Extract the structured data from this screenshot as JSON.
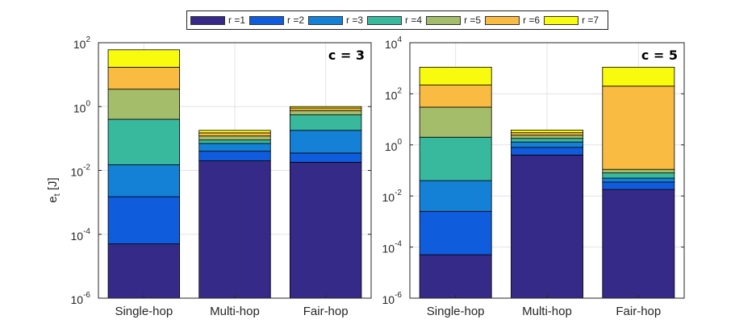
{
  "legend": {
    "placement": "top-center",
    "entries": [
      {
        "label": "r =1",
        "color": "#352A87"
      },
      {
        "label": "r =2",
        "color": "#0F5CDD"
      },
      {
        "label": "r =3",
        "color": "#1481D6"
      },
      {
        "label": "r =4",
        "color": "#38B99E"
      },
      {
        "label": "r =5",
        "color": "#A3BD6A"
      },
      {
        "label": "r =6",
        "color": "#F9BB41"
      },
      {
        "label": "r =7",
        "color": "#F9FB0E"
      }
    ]
  },
  "chart_data": [
    {
      "type": "bar",
      "stacked": true,
      "yscale": "log",
      "annotation": "c = 3",
      "ylabel": "e",
      "ylabel_sub": "t",
      "ylabel_unit": " [J]",
      "categories": [
        "Single-hop",
        "Multi-hop",
        "Fair-hop"
      ],
      "ylim_exp": [
        -6,
        2
      ],
      "ytick_exps": [
        -6,
        -4,
        -2,
        0,
        2
      ],
      "grid": true,
      "stack_tops": [
        [
          5e-05,
          0.0015,
          0.015,
          0.4,
          3.5,
          17,
          60
        ],
        [
          0.02,
          0.04,
          0.07,
          0.09,
          0.12,
          0.15,
          0.18
        ],
        [
          0.018,
          0.035,
          0.18,
          0.55,
          0.75,
          0.9,
          1.0
        ]
      ]
    },
    {
      "type": "bar",
      "stacked": true,
      "yscale": "log",
      "annotation": "c = 5",
      "categories": [
        "Single-hop",
        "Multi-hop",
        "Fair-hop"
      ],
      "ylim_exp": [
        -6,
        4
      ],
      "ytick_exps": [
        -6,
        -4,
        -2,
        0,
        2,
        4
      ],
      "grid": true,
      "stack_tops": [
        [
          5e-05,
          0.0025,
          0.04,
          2,
          30,
          220,
          1100
        ],
        [
          0.4,
          0.8,
          1.3,
          1.8,
          2.4,
          3.0,
          3.8
        ],
        [
          0.018,
          0.035,
          0.05,
          0.08,
          0.11,
          200,
          1100
        ]
      ]
    }
  ]
}
